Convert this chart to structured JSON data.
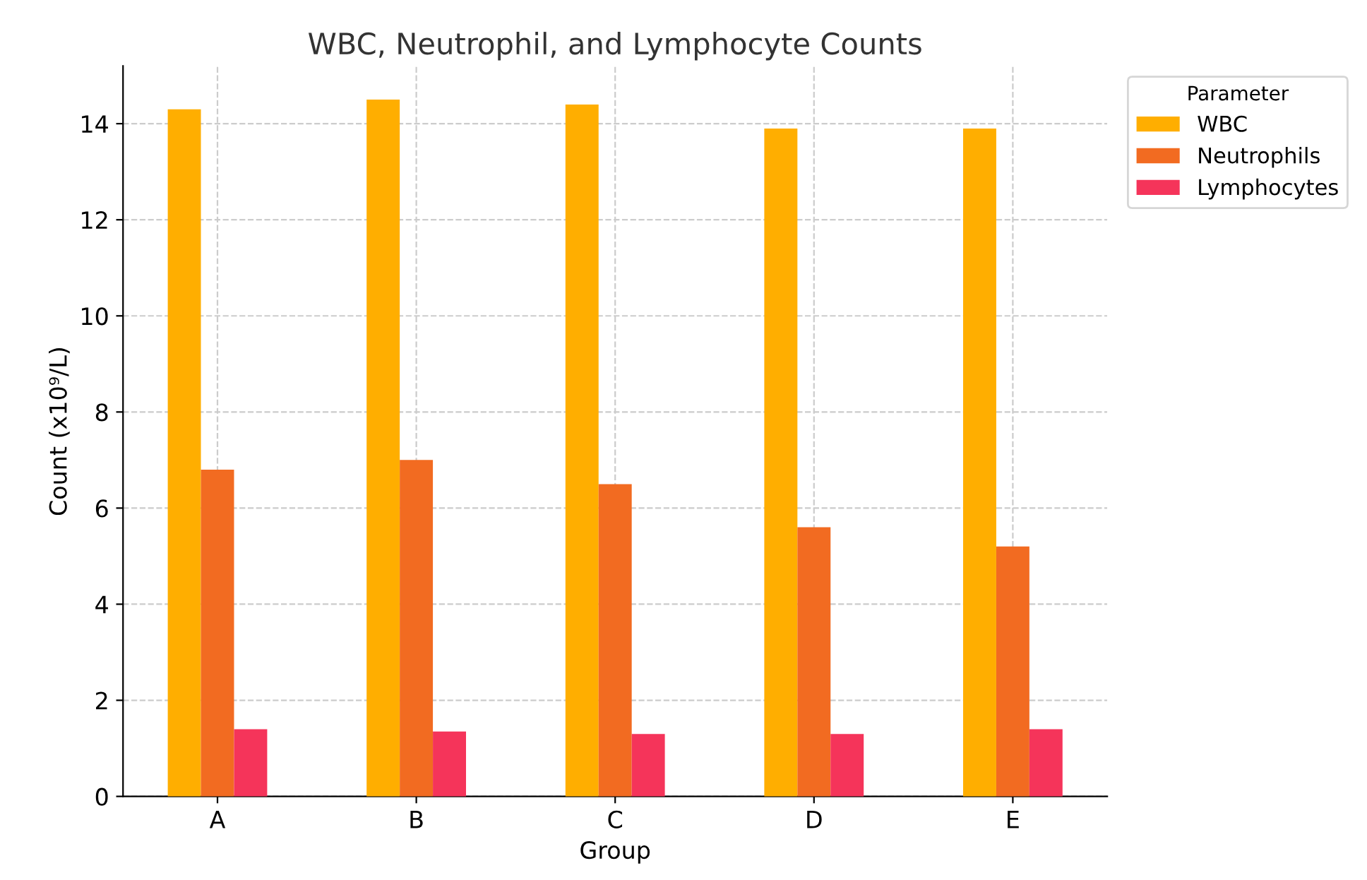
{
  "chart_data": {
    "type": "bar",
    "title": "WBC, Neutrophil, and Lymphocyte Counts",
    "xlabel": "Group",
    "ylabel": "Count (x10⁹/L)",
    "legend_title": "Parameter",
    "categories": [
      "A",
      "B",
      "C",
      "D",
      "E"
    ],
    "series": [
      {
        "name": "WBC",
        "color": "#ffae00",
        "values": [
          14.3,
          14.5,
          14.4,
          13.9,
          13.9
        ]
      },
      {
        "name": "Neutrophils",
        "color": "#f26b21",
        "values": [
          6.8,
          7.0,
          6.5,
          5.6,
          5.2
        ]
      },
      {
        "name": "Lymphocytes",
        "color": "#f5345a",
        "values": [
          1.4,
          1.35,
          1.3,
          1.3,
          1.4
        ]
      }
    ],
    "ylim": [
      0,
      15.2
    ],
    "yticks": [
      0,
      2,
      4,
      6,
      8,
      10,
      12,
      14
    ],
    "grid": true,
    "legend": "top right"
  }
}
